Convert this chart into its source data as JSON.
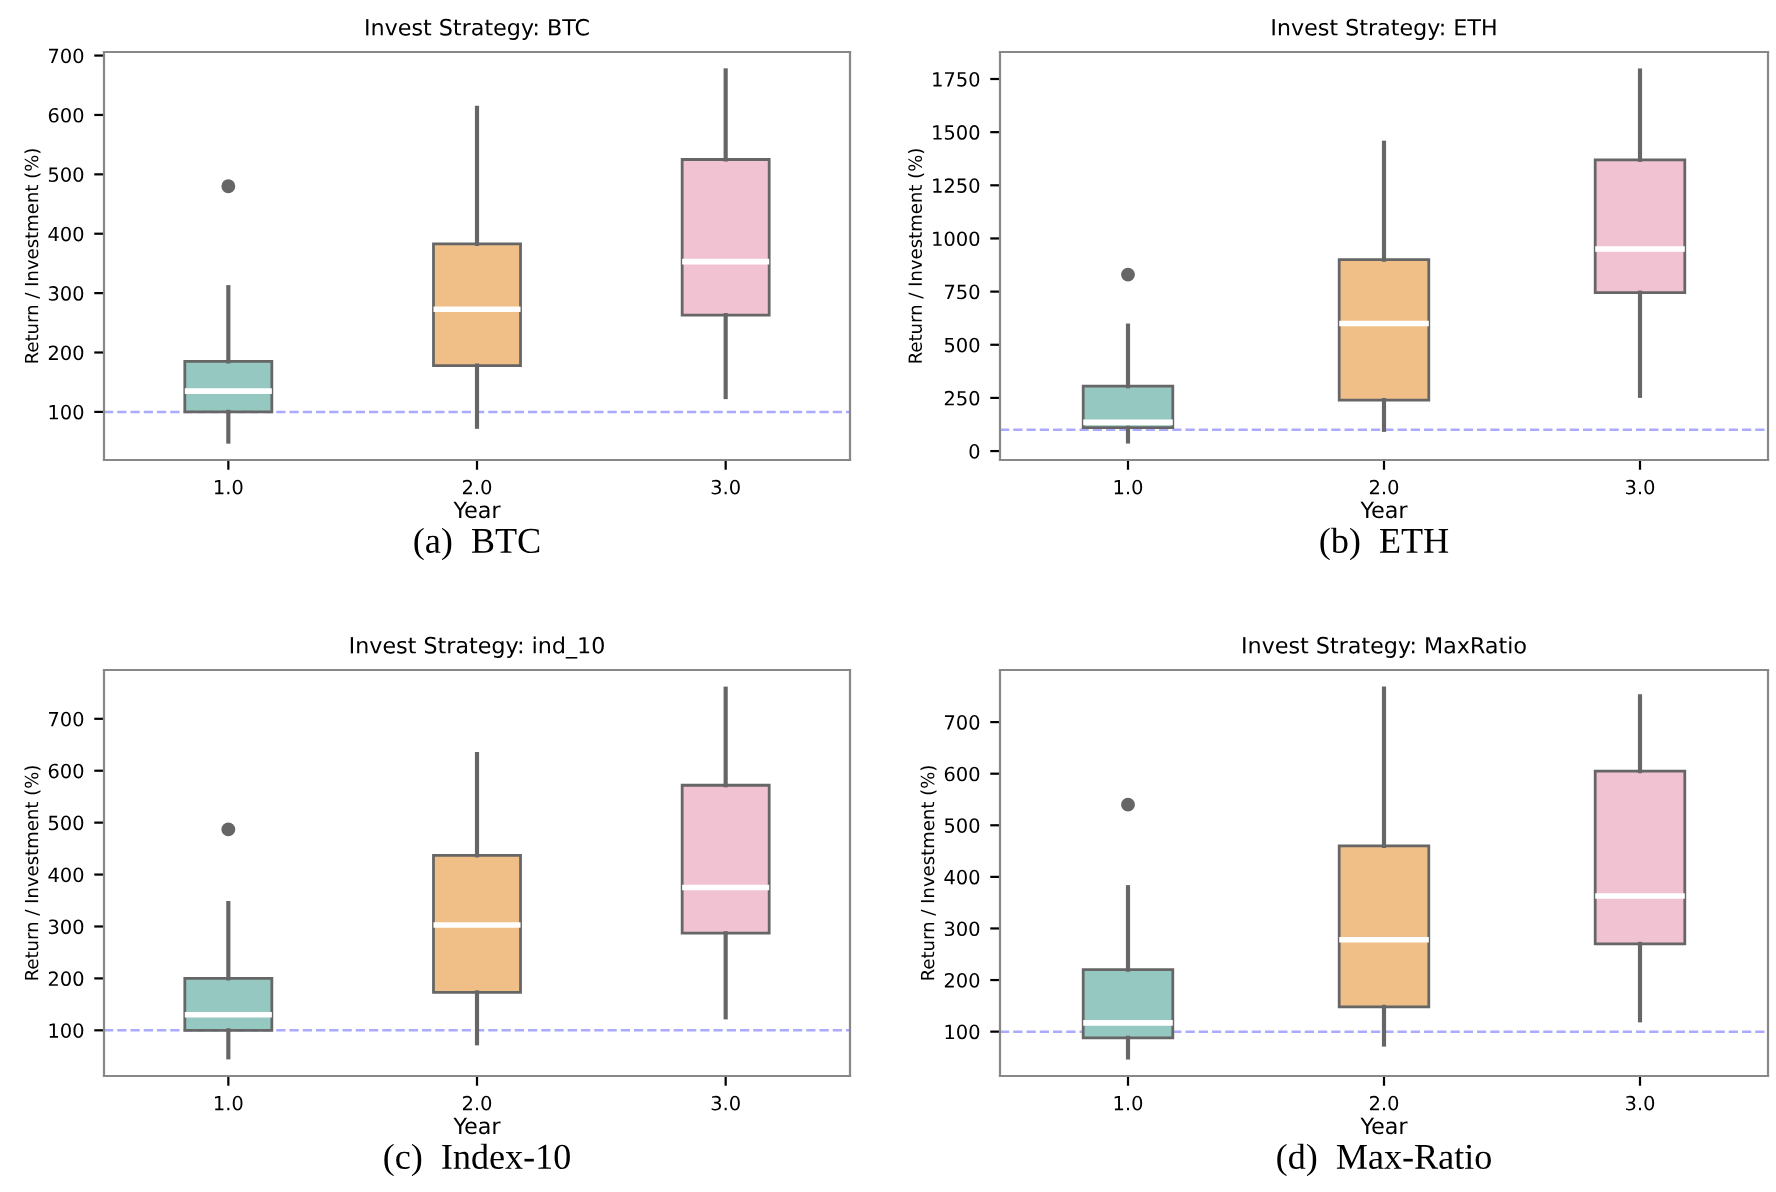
{
  "chart_data": [
    {
      "type": "box",
      "title": "Invest Strategy: BTC",
      "xlabel": "Year",
      "ylabel": "Return / Investment (%)",
      "categories": [
        "1.0",
        "2.0",
        "3.0"
      ],
      "colors": [
        "#96c8c2",
        "#f0bf88",
        "#f0c2d2"
      ],
      "boxes": [
        {
          "low": 50,
          "q1": 100,
          "median": 135,
          "q3": 185,
          "high": 310,
          "outliers": [
            480
          ]
        },
        {
          "low": 75,
          "q1": 178,
          "median": 273,
          "q3": 383,
          "high": 612
        },
        {
          "low": 125,
          "q1": 263,
          "median": 353,
          "q3": 525,
          "high": 675
        }
      ],
      "ylim": [
        19,
        706
      ],
      "yticks": [
        100,
        200,
        300,
        400,
        500,
        600,
        700
      ],
      "ref_lines": [
        {
          "axis": "y",
          "value": 100,
          "color": "#aaaaff",
          "line_style": "dashed"
        }
      ],
      "grid": false,
      "annotations": [
        "(a)  BTC"
      ]
    },
    {
      "type": "box",
      "title": "Invest Strategy: ETH",
      "xlabel": "Year",
      "ylabel": "Return / Investment (%)",
      "categories": [
        "1.0",
        "2.0",
        "3.0"
      ],
      "colors": [
        "#96c8c2",
        "#f0bf88",
        "#f0c2d2"
      ],
      "boxes": [
        {
          "low": 45,
          "q1": 110,
          "median": 135,
          "q3": 305,
          "high": 590,
          "outliers": [
            830
          ]
        },
        {
          "low": 100,
          "q1": 240,
          "median": 600,
          "q3": 900,
          "high": 1450
        },
        {
          "low": 260,
          "q1": 745,
          "median": 950,
          "q3": 1370,
          "high": 1790
        }
      ],
      "ylim": [
        -42,
        1877
      ],
      "yticks": [
        0,
        250,
        500,
        750,
        1000,
        1250,
        1500,
        1750
      ],
      "ref_lines": [
        {
          "axis": "y",
          "value": 100,
          "color": "#aaaaff",
          "line_style": "dashed"
        }
      ],
      "grid": false,
      "annotations": [
        "(b)  ETH"
      ]
    },
    {
      "type": "box",
      "title": "Invest Strategy: ind_10",
      "xlabel": "Year",
      "ylabel": "Return / Investment (%)",
      "categories": [
        "1.0",
        "2.0",
        "3.0"
      ],
      "colors": [
        "#96c8c2",
        "#f0bf88",
        "#f0c2d2"
      ],
      "boxes": [
        {
          "low": 48,
          "q1": 100,
          "median": 130,
          "q3": 200,
          "high": 345,
          "outliers": [
            487
          ]
        },
        {
          "low": 75,
          "q1": 173,
          "median": 303,
          "q3": 437,
          "high": 632
        },
        {
          "low": 125,
          "q1": 287,
          "median": 375,
          "q3": 572,
          "high": 758
        }
      ],
      "ylim": [
        12,
        794
      ],
      "yticks": [
        100,
        200,
        300,
        400,
        500,
        600,
        700
      ],
      "ref_lines": [
        {
          "axis": "y",
          "value": 100,
          "color": "#aaaaff",
          "line_style": "dashed"
        }
      ],
      "grid": false,
      "annotations": [
        "(c)  Index-10"
      ]
    },
    {
      "type": "box",
      "title": "Invest Strategy: MaxRatio",
      "xlabel": "Year",
      "ylabel": "Return / Investment (%)",
      "categories": [
        "1.0",
        "2.0",
        "3.0"
      ],
      "colors": [
        "#96c8c2",
        "#f0bf88",
        "#f0c2d2"
      ],
      "boxes": [
        {
          "low": 50,
          "q1": 88,
          "median": 117,
          "q3": 220,
          "high": 380,
          "outliers": [
            540
          ]
        },
        {
          "low": 75,
          "q1": 148,
          "median": 278,
          "q3": 460,
          "high": 765
        },
        {
          "low": 122,
          "q1": 270,
          "median": 363,
          "q3": 605,
          "high": 750
        }
      ],
      "ylim": [
        14,
        801
      ],
      "yticks": [
        100,
        200,
        300,
        400,
        500,
        600,
        700
      ],
      "ref_lines": [
        {
          "axis": "y",
          "value": 100,
          "color": "#aaaaff",
          "line_style": "dashed"
        }
      ],
      "grid": false,
      "annotations": [
        "(d)  Max-Ratio"
      ]
    }
  ]
}
